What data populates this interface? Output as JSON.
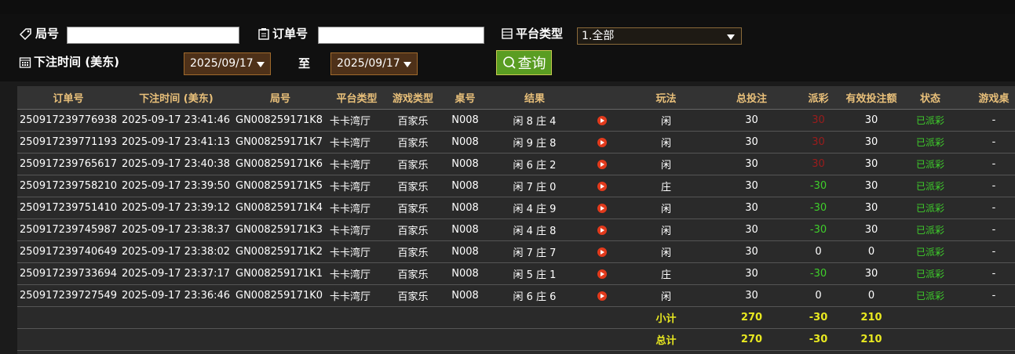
{
  "filters": {
    "round_label": "局号",
    "order_label": "订单号",
    "platform_label": "平台类型",
    "platform_value": "1.全部",
    "time_label": "下注时间 (美东)",
    "date_from": "2025/09/17",
    "to_label": "至",
    "date_to": "2025/09/17",
    "search_button": "查询"
  },
  "table": {
    "headers": [
      "订单号",
      "下注时间 (美东)",
      "局号",
      "平台类型",
      "游戏类型",
      "桌号",
      "结果",
      "玩法",
      "总投注",
      "派彩",
      "有效投注额",
      "状态",
      "游戏桌"
    ],
    "rows": [
      [
        "250917239776938",
        "2025-09-17 23:41:46",
        "GN008259171K8",
        "卡卡湾厅",
        "百家乐",
        "N008",
        "闲 8 庄 4",
        "闲",
        30,
        30,
        30,
        "已派彩",
        "-"
      ],
      [
        "250917239771193",
        "2025-09-17 23:41:13",
        "GN008259171K7",
        "卡卡湾厅",
        "百家乐",
        "N008",
        "闲 9 庄 8",
        "闲",
        30,
        30,
        30,
        "已派彩",
        "-"
      ],
      [
        "250917239765617",
        "2025-09-17 23:40:38",
        "GN008259171K6",
        "卡卡湾厅",
        "百家乐",
        "N008",
        "闲 6 庄 2",
        "闲",
        30,
        30,
        30,
        "已派彩",
        "-"
      ],
      [
        "250917239758210",
        "2025-09-17 23:39:50",
        "GN008259171K5",
        "卡卡湾厅",
        "百家乐",
        "N008",
        "闲 7 庄 0",
        "庄",
        30,
        -30,
        30,
        "已派彩",
        "-"
      ],
      [
        "250917239751410",
        "2025-09-17 23:39:12",
        "GN008259171K4",
        "卡卡湾厅",
        "百家乐",
        "N008",
        "闲 4 庄 9",
        "闲",
        30,
        -30,
        30,
        "已派彩",
        "-"
      ],
      [
        "250917239745987",
        "2025-09-17 23:38:37",
        "GN008259171K3",
        "卡卡湾厅",
        "百家乐",
        "N008",
        "闲 4 庄 8",
        "闲",
        30,
        -30,
        30,
        "已派彩",
        "-"
      ],
      [
        "250917239740649",
        "2025-09-17 23:38:02",
        "GN008259171K2",
        "卡卡湾厅",
        "百家乐",
        "N008",
        "闲 7 庄 7",
        "闲",
        30,
        0,
        0,
        "已派彩",
        "-"
      ],
      [
        "250917239733694",
        "2025-09-17 23:37:17",
        "GN008259171K1",
        "卡卡湾厅",
        "百家乐",
        "N008",
        "闲 5 庄 1",
        "庄",
        30,
        -30,
        30,
        "已派彩",
        "-"
      ],
      [
        "250917239727549",
        "2025-09-17 23:36:46",
        "GN008259171K0",
        "卡卡湾厅",
        "百家乐",
        "N008",
        "闲 6 庄 6",
        "闲",
        30,
        0,
        0,
        "已派彩",
        "-"
      ]
    ],
    "summary": [
      {
        "label": "小计",
        "bet": 270,
        "payout": -30,
        "valid": 210
      },
      {
        "label": "总计",
        "bet": 270,
        "payout": -30,
        "valid": 210
      }
    ]
  }
}
